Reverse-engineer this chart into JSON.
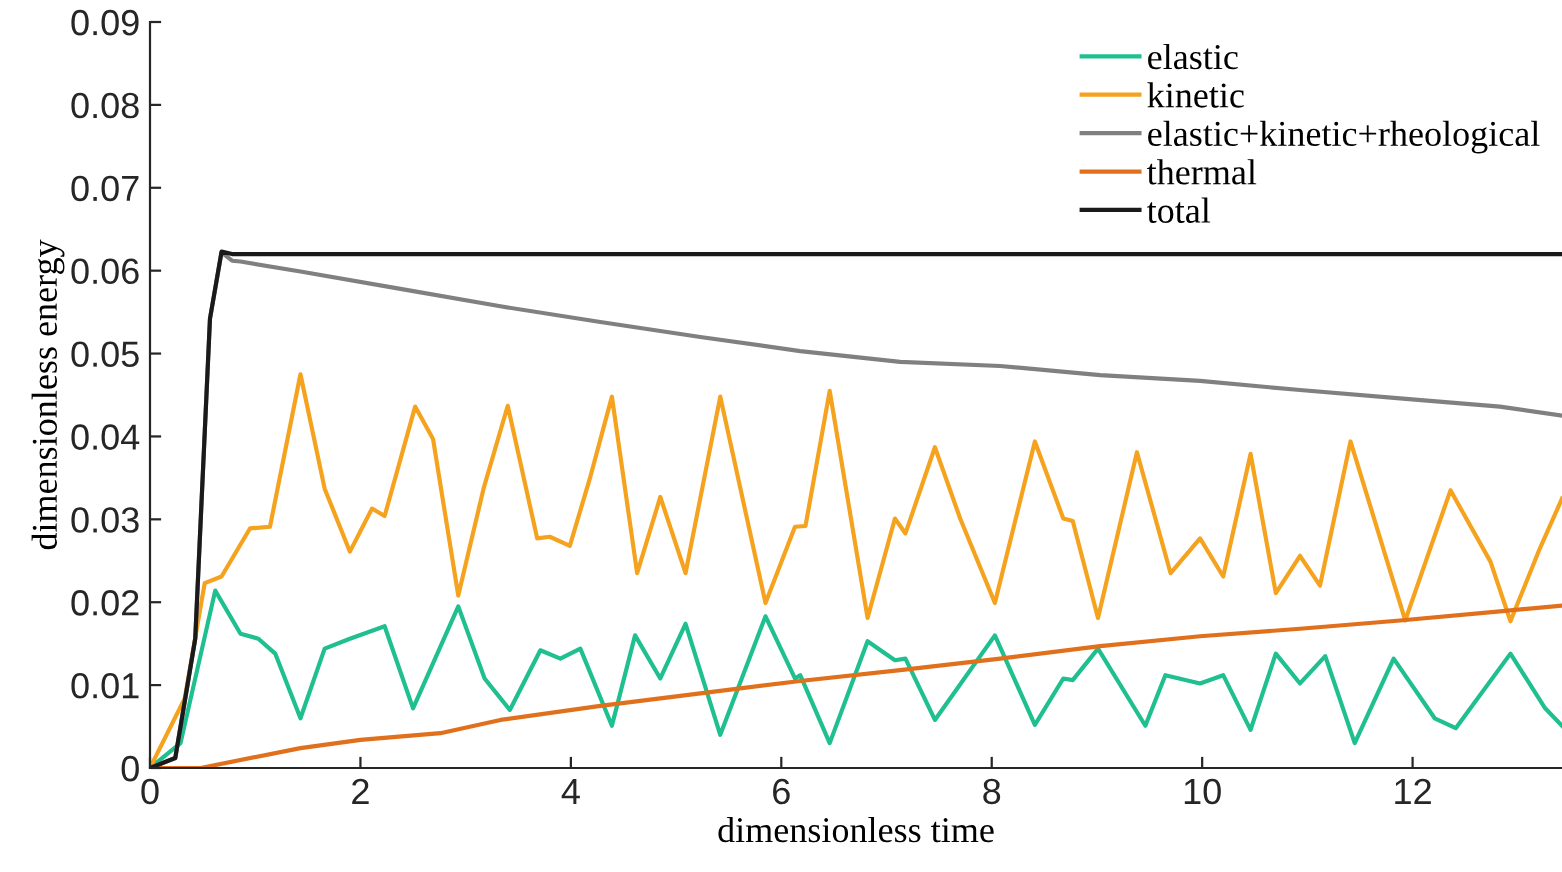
{
  "chart_data": {
    "type": "line",
    "xlabel": "dimensionless time",
    "ylabel": "dimensionless energy",
    "xlim": [
      0,
      13.42
    ],
    "ylim": [
      0,
      0.09
    ],
    "xticks": [
      0,
      2,
      4,
      6,
      8,
      10,
      12
    ],
    "yticks": [
      0,
      0.01,
      0.02,
      0.03,
      0.04,
      0.05,
      0.06,
      0.07,
      0.08,
      0.09
    ],
    "grid": false,
    "legend": "top right",
    "marker": "none",
    "line_style": "solid",
    "series": [
      {
        "name": "elastic",
        "color": "#1fbf8f",
        "x": [
          0,
          0.29,
          0.62,
          0.86,
          1.03,
          1.19,
          1.43,
          1.66,
          1.9,
          2.23,
          2.5,
          2.93,
          3.18,
          3.42,
          3.71,
          3.9,
          4.09,
          4.39,
          4.61,
          4.85,
          5.09,
          5.42,
          5.85,
          6.13,
          6.18,
          6.46,
          6.82,
          7.08,
          7.18,
          7.46,
          8.03,
          8.41,
          8.68,
          8.77,
          9.01,
          9.46,
          9.65,
          9.98,
          10.2,
          10.46,
          10.7,
          10.93,
          11.17,
          11.45,
          11.82,
          12.21,
          12.41,
          12.93,
          13.26,
          13.42
        ],
        "values": [
          0,
          0.003,
          0.0214,
          0.0162,
          0.0156,
          0.0138,
          0.006,
          0.0144,
          0.0156,
          0.0171,
          0.0072,
          0.0195,
          0.0108,
          0.007,
          0.0142,
          0.0132,
          0.0144,
          0.0051,
          0.016,
          0.0108,
          0.0174,
          0.004,
          0.0183,
          0.0108,
          0.0112,
          0.003,
          0.0153,
          0.013,
          0.0132,
          0.0058,
          0.016,
          0.0052,
          0.0108,
          0.0106,
          0.0144,
          0.0051,
          0.0112,
          0.0102,
          0.0112,
          0.0046,
          0.0138,
          0.0102,
          0.0135,
          0.003,
          0.0132,
          0.006,
          0.0048,
          0.0138,
          0.0072,
          0.0051
        ]
      },
      {
        "name": "kinetic",
        "color": "#f5a21f",
        "x": [
          0,
          0.33,
          0.52,
          0.68,
          0.95,
          1.14,
          1.43,
          1.66,
          1.9,
          2.11,
          2.23,
          2.52,
          2.69,
          2.93,
          3.17,
          3.4,
          3.68,
          3.8,
          3.99,
          4.18,
          4.39,
          4.63,
          4.85,
          5.09,
          5.42,
          5.85,
          6.13,
          6.23,
          6.46,
          6.82,
          7.08,
          7.18,
          7.46,
          7.7,
          8.03,
          8.41,
          8.68,
          8.77,
          9.01,
          9.38,
          9.7,
          9.98,
          10.2,
          10.46,
          10.7,
          10.93,
          11.12,
          11.41,
          11.93,
          12.36,
          12.74,
          12.93,
          13.21,
          13.42
        ],
        "values": [
          0,
          0.0084,
          0.0223,
          0.0231,
          0.0289,
          0.0291,
          0.0475,
          0.0337,
          0.0261,
          0.0313,
          0.0304,
          0.0436,
          0.0397,
          0.0208,
          0.0337,
          0.0437,
          0.0277,
          0.0279,
          0.0268,
          0.0349,
          0.0448,
          0.0235,
          0.0327,
          0.0235,
          0.0448,
          0.0199,
          0.0291,
          0.0292,
          0.0455,
          0.0181,
          0.0301,
          0.0283,
          0.0387,
          0.0301,
          0.0199,
          0.0394,
          0.0301,
          0.0298,
          0.0181,
          0.0381,
          0.0235,
          0.0277,
          0.0231,
          0.0379,
          0.0211,
          0.0256,
          0.022,
          0.0394,
          0.0178,
          0.0335,
          0.0249,
          0.0177,
          0.0265,
          0.0325
        ]
      },
      {
        "name": "elastic+kinetic+rheological",
        "color": "#808080",
        "x": [
          0,
          0.24,
          0.43,
          0.57,
          0.68,
          0.78,
          0.86,
          1.43,
          2.38,
          3.33,
          4.28,
          5.23,
          6.18,
          7.13,
          8.08,
          9.03,
          9.98,
          10.93,
          11.88,
          12.83,
          13.42
        ],
        "values": [
          0,
          0.0012,
          0.0156,
          0.0542,
          0.0622,
          0.0612,
          0.0611,
          0.0599,
          0.0578,
          0.0557,
          0.0538,
          0.052,
          0.0503,
          0.049,
          0.0485,
          0.0474,
          0.0467,
          0.0456,
          0.0446,
          0.0436,
          0.0425
        ]
      },
      {
        "name": "thermal",
        "color": "#e0701b",
        "x": [
          0,
          0.48,
          1.43,
          2.0,
          2.76,
          3.33,
          4.28,
          5.23,
          6.18,
          7.13,
          8.08,
          9.03,
          9.98,
          10.93,
          11.88,
          12.83,
          13.42
        ],
        "values": [
          0,
          0,
          0.0024,
          0.0034,
          0.0042,
          0.0058,
          0.0075,
          0.009,
          0.0105,
          0.0118,
          0.0132,
          0.0147,
          0.0159,
          0.0168,
          0.0178,
          0.0189,
          0.0196
        ]
      },
      {
        "name": "total",
        "color": "#1a1a1a",
        "x": [
          0,
          0.24,
          0.43,
          0.57,
          0.68,
          0.78,
          13.42
        ],
        "values": [
          0,
          0.0012,
          0.0156,
          0.0542,
          0.0623,
          0.062,
          0.062
        ]
      }
    ]
  }
}
